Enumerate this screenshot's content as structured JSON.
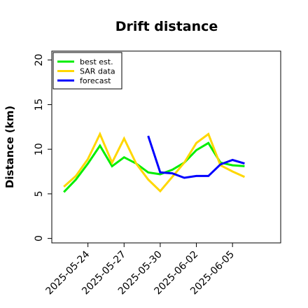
{
  "chart_data": {
    "type": "line",
    "title": "Drift distance",
    "xlabel": "",
    "ylabel": "Distance (km)",
    "ylim": [
      -0.5,
      21
    ],
    "yticks": [
      0,
      5,
      10,
      15,
      20
    ],
    "xticks": [
      "2025-05-24",
      "2025-05-27",
      "2025-05-30",
      "2025-06-02",
      "2025-06-05"
    ],
    "xlim": [
      "2025-05-21",
      "2025-06-09"
    ],
    "grid": false,
    "legend_position": "top-left",
    "series": [
      {
        "name": "best est.",
        "color": "#00ee00",
        "x": [
          "2025-05-22",
          "2025-05-23",
          "2025-05-24",
          "2025-05-25",
          "2025-05-26",
          "2025-05-27",
          "2025-05-28",
          "2025-05-29",
          "2025-05-30",
          "2025-05-31",
          "2025-06-01",
          "2025-06-02",
          "2025-06-03",
          "2025-06-04",
          "2025-06-05",
          "2025-06-06"
        ],
        "values": [
          5.2,
          6.6,
          8.4,
          10.4,
          8.1,
          9.1,
          8.4,
          7.4,
          7.2,
          7.7,
          8.5,
          9.9,
          10.7,
          8.5,
          8.2,
          8.1
        ]
      },
      {
        "name": "SAR data",
        "color": "#ffd700",
        "x": [
          "2025-05-22",
          "2025-05-23",
          "2025-05-24",
          "2025-05-25",
          "2025-05-26",
          "2025-05-27",
          "2025-05-28",
          "2025-05-29",
          "2025-05-30",
          "2025-05-31",
          "2025-06-01",
          "2025-06-02",
          "2025-06-03",
          "2025-06-04",
          "2025-06-05",
          "2025-06-06"
        ],
        "values": [
          5.8,
          7.0,
          8.9,
          11.7,
          8.5,
          11.2,
          8.4,
          6.6,
          5.3,
          6.9,
          8.5,
          10.7,
          11.7,
          8.2,
          7.5,
          6.9
        ]
      },
      {
        "name": "forecast",
        "color": "#0000ff",
        "x": [
          "2025-05-29",
          "2025-05-30",
          "2025-05-31",
          "2025-06-01",
          "2025-06-02",
          "2025-06-03",
          "2025-06-04",
          "2025-06-05",
          "2025-06-06"
        ],
        "values": [
          11.5,
          7.4,
          7.3,
          6.8,
          7.0,
          7.0,
          8.3,
          8.8,
          8.4
        ]
      }
    ]
  }
}
